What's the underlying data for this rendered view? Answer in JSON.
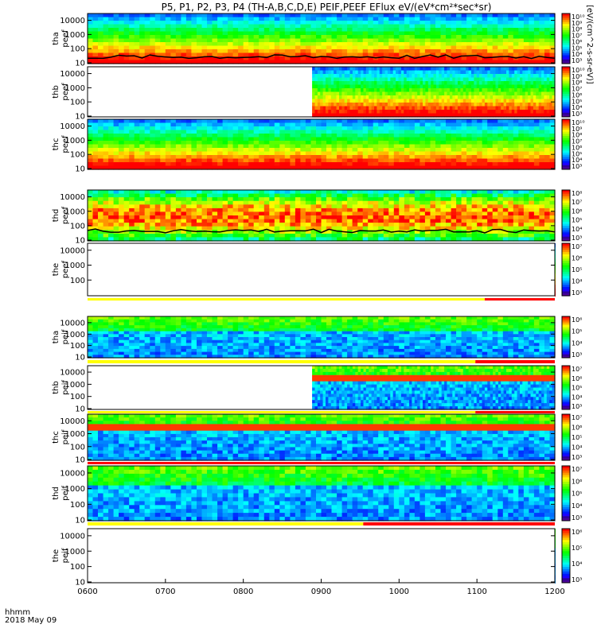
{
  "title": "P5, P1, P2, P3, P4 (TH-A,B,C,D,E) PEIF,PEEF EFlux eV/(eV*cm²*sec*sr)",
  "time_unit": "hhmm",
  "date": "2018 May 09",
  "colorbar_unit": "[eV/(cm^2-s-sr-eV)]",
  "colors": {
    "saturated": "#ff0000",
    "gap_fill": "#ffffff",
    "status_yellow": "#ffff00",
    "status_red": "#ff0000"
  },
  "chart_data": {
    "type": "heatmap",
    "x_label": "hhmm",
    "x_ticks": [
      "0600",
      "0700",
      "0800",
      "0900",
      "1000",
      "1100",
      "1200"
    ],
    "x_range": [
      "0600",
      "1200"
    ],
    "y_scale": "log",
    "colormap": "rainbow (violet-blue-cyan-green-yellow-red)",
    "panels": [
      {
        "name": "tha peef",
        "label_top": "tha",
        "label_bottom": "peef",
        "y_ticks": [
          "10",
          "100",
          "1000",
          "10000"
        ],
        "cbar_ticks": [
          "10³",
          "10⁴",
          "10⁵",
          "10⁶",
          "10⁷",
          "10⁸",
          "10⁹",
          "10¹⁰"
        ],
        "data_start": "0600",
        "spacecraft_potential_line": true
      },
      {
        "name": "thb peef",
        "label_top": "thb",
        "label_bottom": "peef",
        "y_ticks": [
          "10",
          "100",
          "1000",
          "10000"
        ],
        "cbar_ticks": [
          "10³",
          "10⁴",
          "10⁵",
          "10⁶",
          "10⁷",
          "10⁸",
          "10⁹",
          "10¹⁰"
        ],
        "data_start": "0853",
        "spacecraft_potential_line": false
      },
      {
        "name": "thc peef",
        "label_top": "thc",
        "label_bottom": "peef",
        "y_ticks": [
          "10",
          "100",
          "1000",
          "10000"
        ],
        "cbar_ticks": [
          "10³",
          "10⁴",
          "10⁵",
          "10⁶",
          "10⁷",
          "10⁸",
          "10⁹",
          "10¹⁰"
        ],
        "data_start": "0600",
        "spacecraft_potential_line": false
      },
      {
        "name": "thd peef",
        "label_top": "thd",
        "label_bottom": "peef",
        "y_ticks": [
          "10",
          "100",
          "1000",
          "10000"
        ],
        "cbar_ticks": [
          "10³",
          "10⁴",
          "10⁵",
          "10⁶",
          "10⁷",
          "10⁸"
        ],
        "data_start": "0600",
        "spacecraft_potential_line": true
      },
      {
        "name": "the peef",
        "label_top": "the",
        "label_bottom": "peef",
        "y_ticks": [
          "100",
          "1000",
          "10000"
        ],
        "cbar_ticks": [
          "10³",
          "10⁴",
          "10⁵",
          "10⁶",
          "10⁷"
        ],
        "data_start": "none",
        "spacecraft_potential_line": false
      },
      {
        "name": "tha peif",
        "label_top": "tha",
        "label_bottom": "peif",
        "y_ticks": [
          "10",
          "100",
          "1000",
          "10000"
        ],
        "cbar_ticks": [
          "10³",
          "10⁴",
          "10⁵",
          "10⁶"
        ],
        "data_start": "0600",
        "spacecraft_potential_line": false
      },
      {
        "name": "thb peif",
        "label_top": "thb",
        "label_bottom": "peif",
        "y_ticks": [
          "10",
          "100",
          "1000",
          "10000"
        ],
        "cbar_ticks": [
          "10³",
          "10⁴",
          "10⁵",
          "10⁶",
          "10⁷"
        ],
        "data_start": "0853",
        "spacecraft_potential_line": false
      },
      {
        "name": "thc peif",
        "label_top": "thc",
        "label_bottom": "peif",
        "y_ticks": [
          "10",
          "100",
          "1000",
          "10000"
        ],
        "cbar_ticks": [
          "10³",
          "10⁴",
          "10⁵",
          "10⁶",
          "10⁷"
        ],
        "data_start": "0600",
        "spacecraft_potential_line": false
      },
      {
        "name": "thd peif",
        "label_top": "thd",
        "label_bottom": "peif",
        "y_ticks": [
          "10",
          "100",
          "1000",
          "10000"
        ],
        "cbar_ticks": [
          "10³",
          "10⁴",
          "10⁵",
          "10⁶",
          "10⁷"
        ],
        "data_start": "0600",
        "spacecraft_potential_line": false
      },
      {
        "name": "the peif",
        "label_top": "the",
        "label_bottom": "peif",
        "y_ticks": [
          "10",
          "100",
          "1000",
          "10000"
        ],
        "cbar_ticks": [
          "10³",
          "10⁴",
          "10⁵",
          "10⁶"
        ],
        "data_start": "none",
        "spacecraft_potential_line": false
      }
    ]
  }
}
